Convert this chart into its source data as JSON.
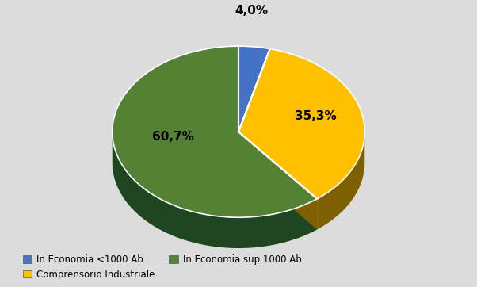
{
  "slices": [
    4.0,
    35.3,
    60.7
  ],
  "labels": [
    "In Economia <1000 Ab",
    "Comprensorio Industriale",
    "In Economia sup 1000 Ab"
  ],
  "colors_top": [
    "#4472C4",
    "#FFC000",
    "#548235"
  ],
  "colors_side": [
    "#17375E",
    "#7F6000",
    "#1E4620"
  ],
  "pct_labels": [
    "4,0%",
    "35,3%",
    "60,7%"
  ],
  "background_color": "#DCDCDC",
  "legend_colors": [
    "#4472C4",
    "#FFC000",
    "#548235"
  ],
  "white_bg": "#FFFFFF"
}
